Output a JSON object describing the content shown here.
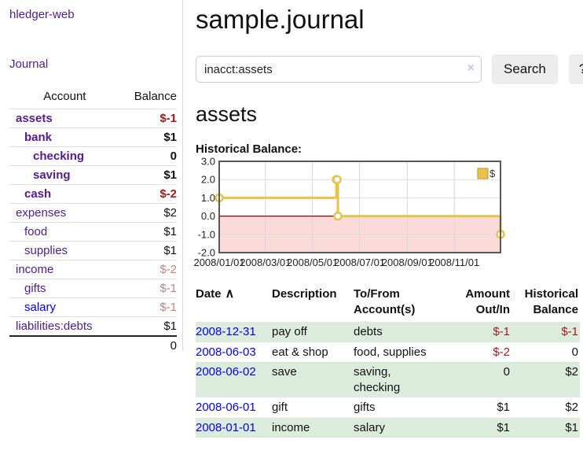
{
  "colors": {
    "link_purple": "#551a8b",
    "link_blue": "#0000ee",
    "negative_red": "#9e1a1a",
    "muted_negative": "#c08585",
    "row_stripe_green": "#dcecdc",
    "chart_line_gold": "#e7c34b",
    "chart_negative_region_pink": "#fbdada",
    "chart_zero_line_red": "#990000",
    "button_gray": "#ececec"
  },
  "sidebar": {
    "brand": "hledger-web",
    "journal_label": "Journal",
    "account_header": "Account",
    "balance_header": "Balance",
    "accounts": [
      {
        "name": "assets",
        "balance": "$-1",
        "indent": 1,
        "bold": true,
        "balance_style": "neg"
      },
      {
        "name": "bank",
        "balance": "$1",
        "indent": 2,
        "bold": true,
        "balance_style": "pos"
      },
      {
        "name": "checking",
        "balance": "0",
        "indent": 3,
        "bold": true,
        "balance_style": "pos"
      },
      {
        "name": "saving",
        "balance": "$1",
        "indent": 3,
        "bold": true,
        "balance_style": "pos"
      },
      {
        "name": "cash",
        "balance": "$-2",
        "indent": 2,
        "bold": true,
        "balance_style": "neg"
      },
      {
        "name": "expenses",
        "balance": "$2",
        "indent": 1,
        "bold": false,
        "balance_style": "pos"
      },
      {
        "name": "food",
        "balance": "$1",
        "indent": 2,
        "bold": false,
        "balance_style": "pos"
      },
      {
        "name": "supplies",
        "balance": "$1",
        "indent": 2,
        "bold": false,
        "balance_style": "pos"
      },
      {
        "name": "income",
        "balance": "$-2",
        "indent": 1,
        "bold": false,
        "balance_style": "mutedneg"
      },
      {
        "name": "gifts",
        "balance": "$-1",
        "indent": 2,
        "bold": false,
        "balance_style": "mutedneg"
      },
      {
        "name": "salary",
        "balance": "$-1",
        "indent": 2,
        "bold": false,
        "balance_style": "mutedneg",
        "link_style": "blue"
      },
      {
        "name": "liabilities:debts",
        "balance": "$1",
        "indent": 1,
        "bold": false,
        "balance_style": "pos"
      }
    ],
    "total": "0"
  },
  "main": {
    "title": "sample.journal",
    "search": {
      "value": "inacct:assets",
      "clear_icon": "×",
      "search_button": "Search",
      "help_button": "?"
    },
    "account_heading": "assets",
    "chart_title": "Historical Balance:"
  },
  "chart_data": {
    "type": "line",
    "step": true,
    "title": "Historical Balance:",
    "legend": "$",
    "legend_position": "top-right",
    "ylim": [
      -2,
      3
    ],
    "x_range": [
      "2008-01-01",
      "2008-12-31"
    ],
    "y_ticks": [
      "3.0",
      "2.0",
      "1.0",
      "0.0",
      "-1.0",
      "-2.0"
    ],
    "x_ticks": [
      "2008/01/01",
      "2008/03/01",
      "2008/05/01",
      "2008/07/01",
      "2008/09/01",
      "2008/11/01"
    ],
    "series": [
      {
        "name": "$",
        "color": "#e7c34b",
        "points": [
          [
            "2008-01-01",
            1
          ],
          [
            "2008-06-01",
            2
          ],
          [
            "2008-06-02",
            2
          ],
          [
            "2008-06-03",
            0
          ],
          [
            "2008-12-31",
            -1
          ]
        ]
      }
    ],
    "negative_region_color": "#fbdada",
    "zero_line_color": "#990000",
    "grid": true
  },
  "register": {
    "headers": {
      "date": "Date",
      "sort_icon": "∧",
      "description": "Description",
      "accounts": "To/From Account(s)",
      "amount": "Amount Out/In",
      "balance": "Historical Balance"
    },
    "rows": [
      {
        "date": "2008-12-31",
        "description": "pay off",
        "accounts": "debts",
        "amount": "$-1",
        "amount_style": "neg",
        "balance": "$-1",
        "balance_style": "neg"
      },
      {
        "date": "2008-06-03",
        "description": "eat & shop",
        "accounts": "food, supplies",
        "amount": "$-2",
        "amount_style": "neg",
        "balance": "0",
        "balance_style": "pos"
      },
      {
        "date": "2008-06-02",
        "description": "save",
        "accounts": "saving, checking",
        "amount": "0",
        "amount_style": "pos",
        "balance": "$2",
        "balance_style": "pos"
      },
      {
        "date": "2008-06-01",
        "description": "gift",
        "accounts": "gifts",
        "amount": "$1",
        "amount_style": "pos",
        "balance": "$2",
        "balance_style": "pos"
      },
      {
        "date": "2008-01-01",
        "description": "income",
        "accounts": "salary",
        "amount": "$1",
        "amount_style": "pos",
        "balance": "$1",
        "balance_style": "pos"
      }
    ]
  }
}
